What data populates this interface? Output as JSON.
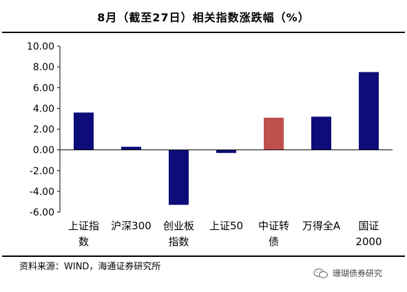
{
  "title": "8月（截至27日）相关指数涨跌幅（%）",
  "source": "资料来源：WIND，海通证券研究所",
  "watermark": "珊瑚债券研究",
  "colors": {
    "primary": "#0d0d7a",
    "highlight": "#c0504d"
  },
  "chart_data": {
    "type": "bar",
    "title": "8月（截至27日）相关指数涨跌幅（%）",
    "categories": [
      [
        "上证指",
        "数"
      ],
      [
        "沪深300"
      ],
      [
        "创业板",
        "指数"
      ],
      [
        "上证50"
      ],
      [
        "中证转",
        "债"
      ],
      [
        "万得全A"
      ],
      [
        "国证",
        "2000"
      ]
    ],
    "values": [
      3.6,
      0.3,
      -5.3,
      -0.3,
      3.1,
      3.2,
      7.5
    ],
    "highlight_index": 4,
    "ylim": [
      -6,
      10
    ],
    "yticks": [
      "10.00",
      "8.00",
      "6.00",
      "4.00",
      "2.00",
      "0.00",
      "-2.00",
      "-4.00",
      "-6.00"
    ],
    "ytick_values": [
      10,
      8,
      6,
      4,
      2,
      0,
      -2,
      -4,
      -6
    ],
    "xlabel": "",
    "ylabel": "",
    "grid": false,
    "legend": "none"
  }
}
